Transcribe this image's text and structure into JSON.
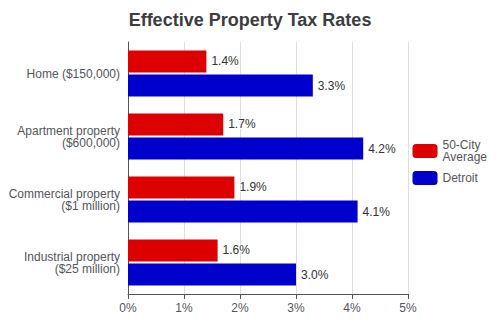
{
  "chart_data": {
    "type": "bar",
    "orientation": "horizontal",
    "title": "Effective Property Tax Rates",
    "categories": [
      "Home ($150,000)",
      "Apartment property\n($600,000)",
      "Commercial property\n($1 million)",
      "Industrial property\n($25 million)"
    ],
    "series": [
      {
        "name": "50-City\nAverage",
        "color": "#dd0000",
        "values": [
          1.4,
          1.7,
          1.9,
          1.6
        ],
        "value_labels": [
          "1.4%",
          "1.7%",
          "1.9%",
          "1.6%"
        ]
      },
      {
        "name": "Detroit",
        "color": "#0000cc",
        "values": [
          3.3,
          4.2,
          4.1,
          3.0
        ],
        "value_labels": [
          "3.3%",
          "4.2%",
          "4.1%",
          "3.0%"
        ]
      }
    ],
    "xlim": [
      0,
      5
    ],
    "xticks": [
      {
        "value": 0,
        "label": "0%"
      },
      {
        "value": 1,
        "label": "1%"
      },
      {
        "value": 2,
        "label": "2%"
      },
      {
        "value": 3,
        "label": "3%"
      },
      {
        "value": 4,
        "label": "4%"
      },
      {
        "value": 5,
        "label": "5%"
      }
    ],
    "grid": true,
    "legend": "right",
    "data_labels": true
  }
}
